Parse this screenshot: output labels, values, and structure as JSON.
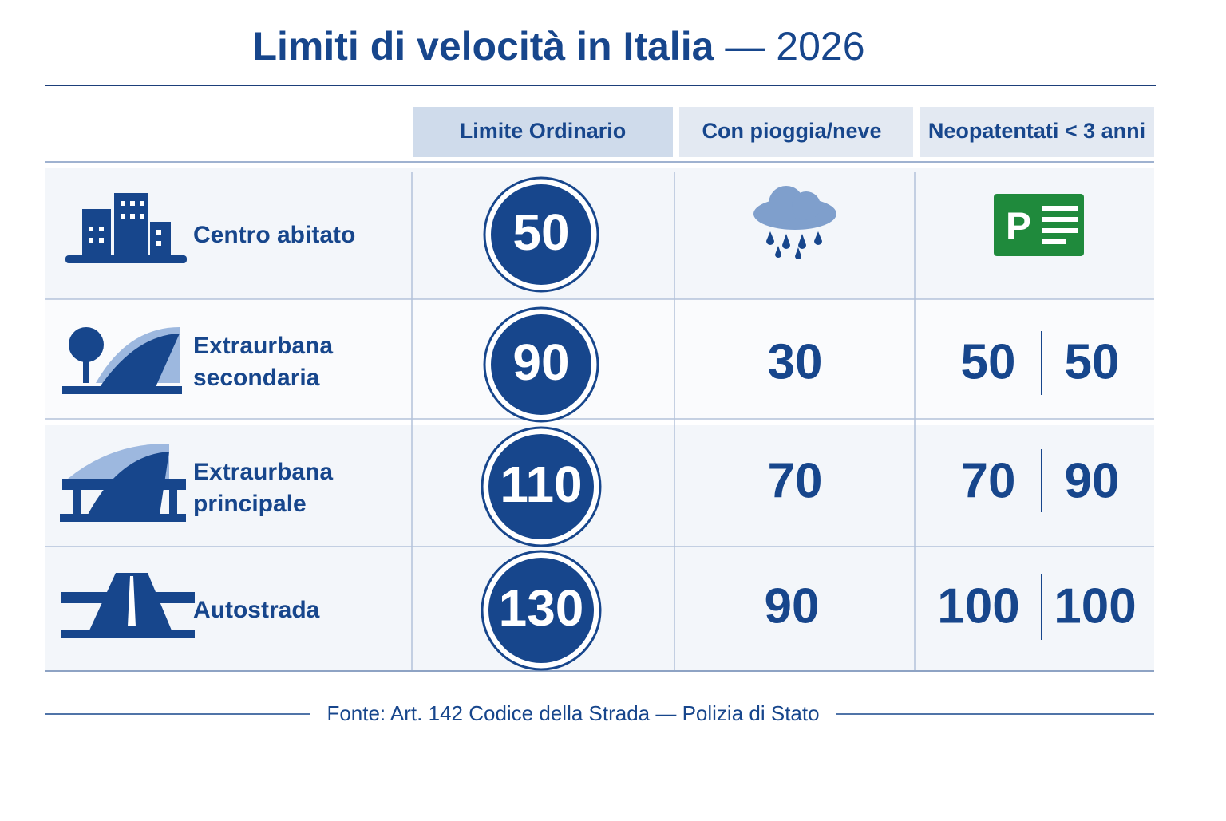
{
  "header": {
    "title": "Limiti di velocità in Italia",
    "title_suffix": "— 2026"
  },
  "table": {
    "headers": [
      "Limite Ordinario",
      "Con pioggia/neve",
      "Neopatentati < 3 anni"
    ],
    "rows": [
      {
        "label": [
          "Centro abitato"
        ],
        "ordinario": 50
      },
      {
        "label": [
          "Extraurbana",
          "secondaria"
        ],
        "ordinario": 90,
        "pioggia": 30,
        "neopatentati": [
          50,
          50
        ]
      },
      {
        "label": [
          "Extraurbana",
          "principale"
        ],
        "ordinario": 110,
        "pioggia": 70,
        "neopatentati": [
          70,
          90
        ]
      },
      {
        "label": [
          "Autostrada"
        ],
        "ordinario": 130,
        "pioggia": 90,
        "neopatentati": [
          100,
          100
        ]
      }
    ]
  },
  "footer": {
    "source": "Fonte: Art. 142 Codice della Strada — Polizia di Stato"
  }
}
